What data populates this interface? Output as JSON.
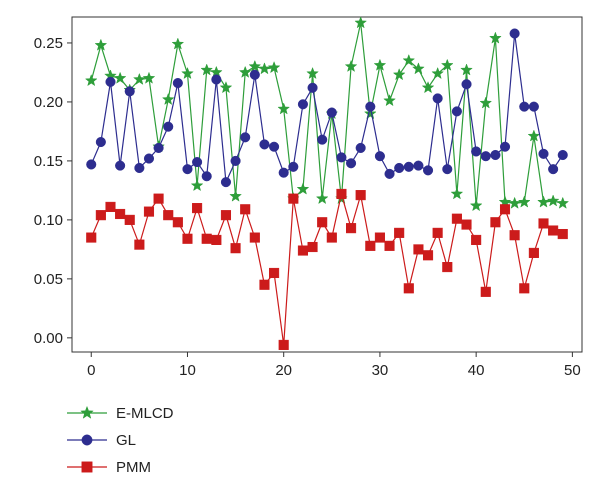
{
  "chart_data": {
    "type": "line",
    "title": "",
    "xlabel": "",
    "ylabel": "",
    "xlim": [
      -2,
      51
    ],
    "ylim": [
      -0.012,
      0.272
    ],
    "xticks": [
      0,
      10,
      20,
      30,
      40,
      50
    ],
    "xtick_labels": [
      "0",
      "10",
      "20",
      "30",
      "40",
      "50"
    ],
    "yticks": [
      0.0,
      0.05,
      0.1,
      0.15,
      0.2,
      0.25
    ],
    "ytick_labels": [
      "0.00",
      "0.05",
      "0.10",
      "0.15",
      "0.20",
      "0.25"
    ],
    "grid": false,
    "legend_position": "bottom-left",
    "x": [
      0,
      1,
      2,
      3,
      4,
      5,
      6,
      7,
      8,
      9,
      10,
      11,
      12,
      13,
      14,
      15,
      16,
      17,
      18,
      19,
      20,
      21,
      22,
      23,
      24,
      25,
      26,
      27,
      28,
      29,
      30,
      31,
      32,
      33,
      34,
      35,
      36,
      37,
      38,
      39,
      40,
      41,
      42,
      43,
      44,
      45,
      46,
      47,
      48,
      49
    ],
    "series": [
      {
        "name": "E-MLCD",
        "color": "#2e9e3a",
        "marker": "star",
        "values": [
          0.218,
          0.248,
          0.222,
          0.22,
          0.21,
          0.219,
          0.22,
          0.162,
          0.202,
          0.249,
          0.224,
          0.129,
          0.227,
          0.225,
          0.212,
          0.12,
          0.225,
          0.23,
          0.228,
          0.229,
          0.194,
          0.118,
          0.126,
          0.224,
          0.118,
          0.19,
          0.118,
          0.23,
          0.267,
          0.19,
          0.231,
          0.201,
          0.223,
          0.235,
          0.228,
          0.212,
          0.224,
          0.231,
          0.122,
          0.227,
          0.112,
          0.199,
          0.254,
          0.115,
          0.114,
          0.115,
          0.171,
          0.115,
          0.116,
          0.114
        ]
      },
      {
        "name": "GL",
        "color": "#2d2d8f",
        "marker": "circle",
        "values": [
          0.147,
          0.166,
          0.217,
          0.146,
          0.209,
          0.144,
          0.152,
          0.161,
          0.179,
          0.216,
          0.143,
          0.149,
          0.137,
          0.219,
          0.132,
          0.15,
          0.17,
          0.223,
          0.164,
          0.162,
          0.14,
          0.145,
          0.198,
          0.212,
          0.168,
          0.191,
          0.153,
          0.148,
          0.161,
          0.196,
          0.154,
          0.139,
          0.144,
          0.145,
          0.146,
          0.142,
          0.203,
          0.143,
          0.192,
          0.215,
          0.158,
          0.154,
          0.155,
          0.162,
          0.258,
          0.196,
          0.196,
          0.156,
          0.143,
          0.155
        ]
      },
      {
        "name": "PMM",
        "color": "#cc1b1b",
        "marker": "square",
        "values": [
          0.085,
          0.104,
          0.111,
          0.105,
          0.1,
          0.079,
          0.107,
          0.118,
          0.104,
          0.098,
          0.084,
          0.11,
          0.084,
          0.083,
          0.104,
          0.076,
          0.109,
          0.085,
          0.045,
          0.055,
          -0.006,
          0.118,
          0.074,
          0.077,
          0.098,
          0.085,
          0.122,
          0.093,
          0.121,
          0.078,
          0.085,
          0.078,
          0.089,
          0.042,
          0.075,
          0.07,
          0.089,
          0.06,
          0.101,
          0.096,
          0.083,
          0.039,
          0.098,
          0.109,
          0.087,
          0.042,
          0.072,
          0.097,
          0.091,
          0.088
        ]
      }
    ]
  }
}
